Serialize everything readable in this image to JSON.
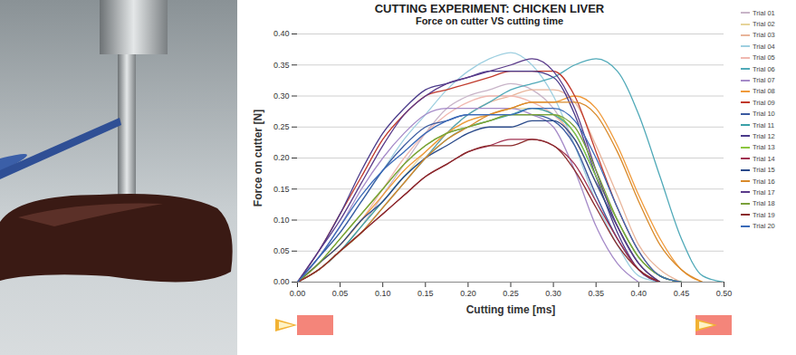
{
  "chart_data": {
    "type": "line",
    "title": "CUTTING EXPERIMENT: CHICKEN LIVER",
    "subtitle": "Force on cutter VS cutting time",
    "x_label": "Cutting time [ms]",
    "y_label": "Force on cutter [N]",
    "x": [
      0,
      0.025,
      0.05,
      0.075,
      0.1,
      0.125,
      0.15,
      0.175,
      0.2,
      0.225,
      0.25,
      0.275,
      0.3,
      0.325,
      0.35,
      0.375,
      0.4,
      0.425,
      0.45,
      0.475,
      0.5
    ],
    "xlim": [
      0,
      0.5
    ],
    "xticks": [
      {
        "value": 0,
        "label": "0.00"
      },
      {
        "value": 0.05,
        "label": "0.05"
      },
      {
        "value": 0.1,
        "label": "0.10"
      },
      {
        "value": 0.15,
        "label": "0.15"
      },
      {
        "value": 0.2,
        "label": "0.20"
      },
      {
        "value": 0.25,
        "label": "0.25"
      },
      {
        "value": 0.3,
        "label": "0.30"
      },
      {
        "value": 0.35,
        "label": "0.35"
      },
      {
        "value": 0.4,
        "label": "0.40"
      },
      {
        "value": 0.45,
        "label": "0.45"
      },
      {
        "value": 0.5,
        "label": "0.50"
      }
    ],
    "ylim": [
      0,
      0.4
    ],
    "yticks": [
      {
        "value": 0,
        "label": "0.00"
      },
      {
        "value": 0.05,
        "label": "0.05"
      },
      {
        "value": 0.1,
        "label": "0.10"
      },
      {
        "value": 0.15,
        "label": "0.15"
      },
      {
        "value": 0.2,
        "label": "0.20"
      },
      {
        "value": 0.25,
        "label": "0.25"
      },
      {
        "value": 0.3,
        "label": "0.30"
      },
      {
        "value": 0.35,
        "label": "0.35"
      },
      {
        "value": 0.4,
        "label": "0.40"
      }
    ],
    "grid": true,
    "legend": "right",
    "series": [
      {
        "name": "Trial 01",
        "color": "#c8b4c8",
        "values": [
          0,
          0.02,
          0.05,
          0.09,
          0.14,
          0.19,
          0.24,
          0.28,
          0.3,
          0.31,
          0.32,
          0.31,
          0.28,
          0.22,
          0.14,
          0.07,
          0.02,
          0,
          null,
          null,
          null
        ]
      },
      {
        "name": "Trial 02",
        "color": "#e6d49a",
        "values": [
          0,
          0.02,
          0.05,
          0.09,
          0.13,
          0.17,
          0.21,
          0.24,
          0.26,
          0.27,
          0.28,
          0.28,
          0.27,
          0.23,
          0.16,
          0.09,
          0.03,
          0,
          null,
          null,
          null
        ]
      },
      {
        "name": "Trial 03",
        "color": "#e8b49a",
        "values": [
          0,
          0.02,
          0.05,
          0.08,
          0.12,
          0.16,
          0.2,
          0.24,
          0.27,
          0.29,
          0.3,
          0.31,
          0.31,
          0.29,
          0.22,
          0.14,
          0.06,
          0.02,
          0,
          null,
          null
        ]
      },
      {
        "name": "Trial 04",
        "color": "#9ecfe0",
        "values": [
          0,
          0.04,
          0.08,
          0.13,
          0.18,
          0.23,
          0.27,
          0.31,
          0.34,
          0.36,
          0.37,
          0.35,
          0.3,
          0.22,
          0.13,
          0.06,
          0.01,
          0,
          null,
          null,
          null
        ]
      },
      {
        "name": "Trial 05",
        "color": "#f0b8b0",
        "values": [
          0,
          0.03,
          0.06,
          0.1,
          0.15,
          0.2,
          0.24,
          0.27,
          0.29,
          0.3,
          0.3,
          0.29,
          0.27,
          0.23,
          0.16,
          0.09,
          0.03,
          0,
          null,
          null,
          null
        ]
      },
      {
        "name": "Trial 06",
        "color": "#4fa9b8",
        "values": [
          0,
          0.02,
          0.05,
          0.08,
          0.12,
          0.16,
          0.2,
          0.24,
          0.27,
          0.29,
          0.31,
          0.32,
          0.33,
          0.35,
          0.36,
          0.34,
          0.27,
          0.17,
          0.07,
          0.01,
          0
        ]
      },
      {
        "name": "Trial 07",
        "color": "#a58ac8",
        "values": [
          0,
          0.04,
          0.09,
          0.15,
          0.2,
          0.24,
          0.27,
          0.28,
          0.28,
          0.28,
          0.28,
          0.27,
          0.25,
          0.18,
          0.09,
          0.03,
          0,
          null,
          null,
          null,
          null
        ]
      },
      {
        "name": "Trial 08",
        "color": "#f09a3a",
        "values": [
          0,
          0.03,
          0.06,
          0.1,
          0.14,
          0.18,
          0.21,
          0.24,
          0.26,
          0.27,
          0.28,
          0.29,
          0.29,
          0.3,
          0.28,
          0.22,
          0.14,
          0.07,
          0.02,
          0,
          null
        ]
      },
      {
        "name": "Trial 09",
        "color": "#c0392b",
        "values": [
          0,
          0.05,
          0.11,
          0.17,
          0.23,
          0.27,
          0.3,
          0.31,
          0.32,
          0.33,
          0.34,
          0.34,
          0.34,
          0.3,
          0.21,
          0.12,
          0.05,
          0.01,
          0,
          null,
          null
        ]
      },
      {
        "name": "Trial 10",
        "color": "#3a5aa0",
        "values": [
          0,
          0.04,
          0.08,
          0.13,
          0.18,
          0.22,
          0.25,
          0.26,
          0.27,
          0.27,
          0.27,
          0.27,
          0.26,
          0.22,
          0.14,
          0.07,
          0.02,
          0,
          null,
          null,
          null
        ]
      },
      {
        "name": "Trial 11",
        "color": "#3aa0a8",
        "values": [
          0,
          0.02,
          0.05,
          0.09,
          0.13,
          0.17,
          0.2,
          0.23,
          0.25,
          0.26,
          0.27,
          0.28,
          0.27,
          0.24,
          0.17,
          0.1,
          0.04,
          0.01,
          0,
          null,
          null
        ]
      },
      {
        "name": "Trial 12",
        "color": "#4a3a8a",
        "values": [
          0,
          0.05,
          0.11,
          0.18,
          0.24,
          0.28,
          0.31,
          0.32,
          0.33,
          0.34,
          0.34,
          0.34,
          0.33,
          0.27,
          0.17,
          0.08,
          0.02,
          0,
          null,
          null,
          null
        ]
      },
      {
        "name": "Trial 13",
        "color": "#8cc63f",
        "values": [
          0,
          0.03,
          0.07,
          0.11,
          0.15,
          0.19,
          0.22,
          0.24,
          0.25,
          0.26,
          0.27,
          0.27,
          0.27,
          0.24,
          0.17,
          0.1,
          0.04,
          0.01,
          0,
          null,
          null
        ]
      },
      {
        "name": "Trial 14",
        "color": "#a03050",
        "values": [
          0,
          0.02,
          0.05,
          0.08,
          0.11,
          0.14,
          0.17,
          0.19,
          0.21,
          0.22,
          0.23,
          0.23,
          0.22,
          0.19,
          0.13,
          0.07,
          0.02,
          0,
          null,
          null,
          null
        ]
      },
      {
        "name": "Trial 15",
        "color": "#2a4a8a",
        "values": [
          0,
          0.03,
          0.06,
          0.1,
          0.13,
          0.17,
          0.2,
          0.22,
          0.24,
          0.25,
          0.25,
          0.26,
          0.26,
          0.23,
          0.16,
          0.09,
          0.03,
          0,
          null,
          null,
          null
        ]
      },
      {
        "name": "Trial 16",
        "color": "#d98a2a",
        "values": [
          0,
          0.02,
          0.05,
          0.08,
          0.12,
          0.16,
          0.2,
          0.23,
          0.25,
          0.27,
          0.28,
          0.29,
          0.29,
          0.29,
          0.27,
          0.21,
          0.13,
          0.06,
          0.02,
          0,
          null
        ]
      },
      {
        "name": "Trial 17",
        "color": "#5a3a8a",
        "values": [
          0,
          0.05,
          0.1,
          0.16,
          0.22,
          0.27,
          0.3,
          0.32,
          0.33,
          0.34,
          0.35,
          0.36,
          0.34,
          0.28,
          0.18,
          0.09,
          0.03,
          0,
          null,
          null,
          null
        ]
      },
      {
        "name": "Trial 18",
        "color": "#7aa03a",
        "values": [
          0,
          0.03,
          0.07,
          0.11,
          0.15,
          0.19,
          0.22,
          0.24,
          0.25,
          0.26,
          0.27,
          0.27,
          0.27,
          0.25,
          0.18,
          0.1,
          0.04,
          0.01,
          0,
          null,
          null
        ]
      },
      {
        "name": "Trial 19",
        "color": "#8a2a2a",
        "values": [
          0,
          0.02,
          0.05,
          0.08,
          0.11,
          0.14,
          0.17,
          0.19,
          0.21,
          0.22,
          0.22,
          0.23,
          0.22,
          0.18,
          0.12,
          0.06,
          0.02,
          0,
          null,
          null,
          null
        ]
      },
      {
        "name": "Trial 20",
        "color": "#3a6ab8",
        "values": [
          0,
          0.04,
          0.09,
          0.14,
          0.18,
          0.21,
          0.24,
          0.26,
          0.27,
          0.27,
          0.27,
          0.28,
          0.28,
          0.26,
          0.2,
          0.12,
          0.05,
          0.01,
          0,
          null,
          null
        ]
      }
    ]
  }
}
